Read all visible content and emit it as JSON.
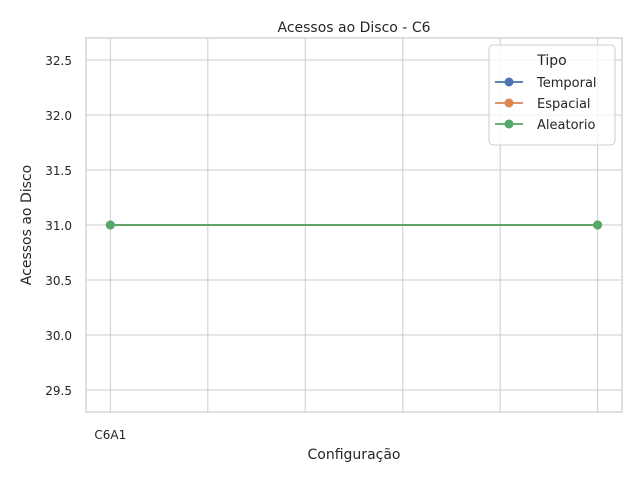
{
  "chart_data": {
    "type": "line",
    "title": "Acessos ao Disco - C6",
    "xlabel": "Configuração",
    "ylabel": "Acessos ao Disco",
    "x_tick_labels": [
      "C6A1"
    ],
    "x_points": [
      0,
      5
    ],
    "x_gridlines": [
      0,
      1,
      2,
      3,
      4,
      5
    ],
    "xlim": [
      -0.25,
      5.25
    ],
    "ylim": [
      29.3,
      32.7
    ],
    "y_ticks": [
      29.5,
      30.0,
      30.5,
      31.0,
      31.5,
      32.0,
      32.5
    ],
    "y_tick_labels": [
      "29.5",
      "30.0",
      "30.5",
      "31.0",
      "31.5",
      "32.0",
      "32.5"
    ],
    "grid": true,
    "legend": {
      "title": "Tipo",
      "placement": "top-right"
    },
    "series": [
      {
        "name": "Temporal",
        "color": "#4c72b0",
        "values": [
          31,
          31
        ]
      },
      {
        "name": "Espacial",
        "color": "#dd8452",
        "values": [
          31,
          31
        ]
      },
      {
        "name": "Aleatorio",
        "color": "#55a868",
        "values": [
          31,
          31
        ]
      }
    ]
  }
}
